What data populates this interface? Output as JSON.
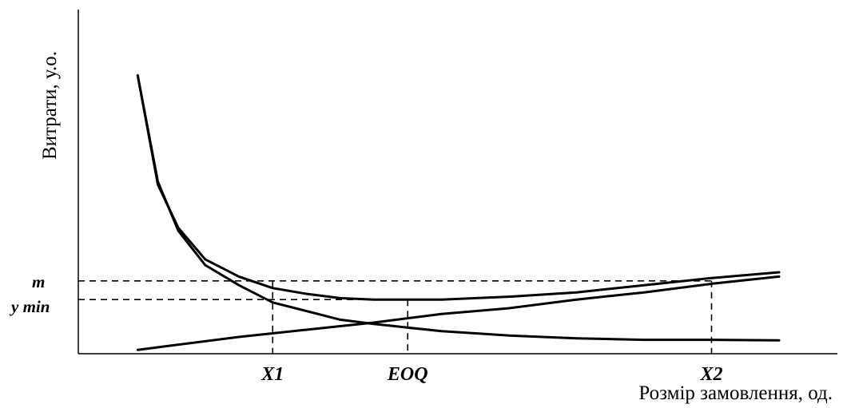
{
  "chart_data": {
    "type": "line",
    "title": "",
    "xlabel": "Розмір замовлення, од.",
    "ylabel": "Витрати, у.о.",
    "grid": false,
    "legend": "none",
    "xlim": [
      0,
      10
    ],
    "ylim": [
      0,
      10
    ],
    "series": [
      {
        "name": "",
        "points": [
          [
            0.5,
            9.6
          ],
          [
            0.8,
            5.8
          ],
          [
            1.1,
            4.3
          ],
          [
            1.5,
            3.2
          ],
          [
            2.0,
            2.6
          ],
          [
            2.5,
            2.2
          ],
          [
            3.0,
            2.0
          ],
          [
            3.5,
            1.85
          ],
          [
            4.0,
            1.8
          ],
          [
            5.0,
            1.8
          ],
          [
            6.0,
            1.9
          ],
          [
            7.0,
            2.05
          ],
          [
            8.0,
            2.3
          ],
          [
            9.0,
            2.55
          ],
          [
            10.0,
            2.75
          ]
        ]
      },
      {
        "name": "",
        "points": [
          [
            0.5,
            9.6
          ],
          [
            0.8,
            5.9
          ],
          [
            1.1,
            4.2
          ],
          [
            1.5,
            3.0
          ],
          [
            2.0,
            2.3
          ],
          [
            2.5,
            1.7
          ],
          [
            3.5,
            1.1
          ],
          [
            4.0,
            0.95
          ],
          [
            5.0,
            0.7
          ],
          [
            6.0,
            0.55
          ],
          [
            7.0,
            0.45
          ],
          [
            8.0,
            0.4
          ],
          [
            9.0,
            0.4
          ],
          [
            10.0,
            0.38
          ]
        ]
      },
      {
        "name": "",
        "points": [
          [
            0.5,
            0.05
          ],
          [
            1.0,
            0.2
          ],
          [
            2.0,
            0.5
          ],
          [
            3.0,
            0.75
          ],
          [
            4.0,
            1.0
          ],
          [
            5.0,
            1.3
          ],
          [
            6.0,
            1.5
          ],
          [
            7.0,
            1.8
          ],
          [
            8.0,
            2.05
          ],
          [
            9.0,
            2.35
          ],
          [
            10.0,
            2.6
          ]
        ]
      }
    ],
    "vertical_markers": [
      {
        "label": "X1",
        "x": 2.5
      },
      {
        "label": "EOQ",
        "x": 4.5
      },
      {
        "label": "X2",
        "x": 9.0
      }
    ],
    "horizontal_markers": [
      {
        "label": "m",
        "y": 2.45
      },
      {
        "label": "y min",
        "y": 1.8
      }
    ]
  }
}
